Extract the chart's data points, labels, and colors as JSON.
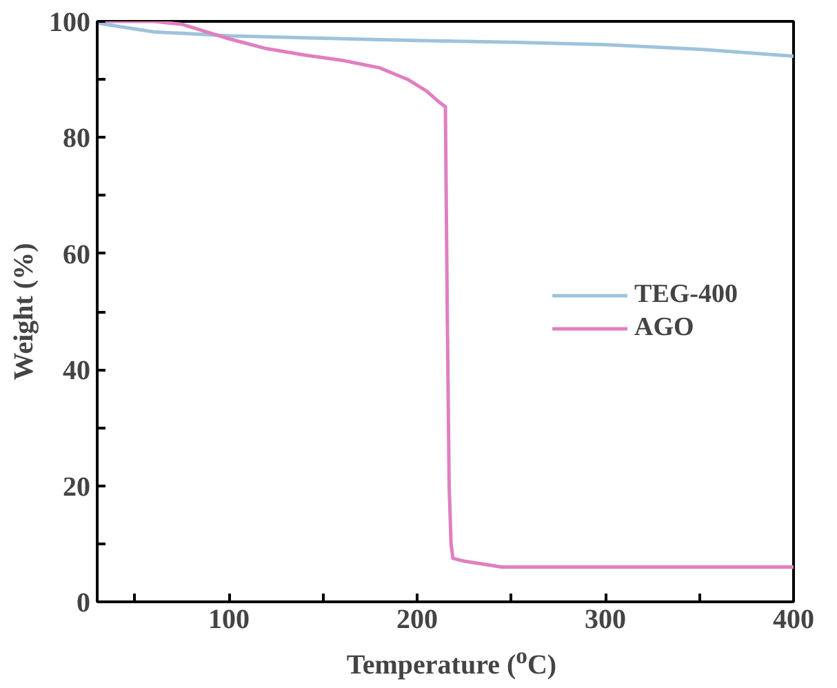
{
  "chart_data": {
    "type": "line",
    "xlabel": "Temperature ($^{o}$C)",
    "ylabel": "Weight (%)",
    "xlim": [
      30,
      400
    ],
    "ylim": [
      0,
      100
    ],
    "xticks": [
      {
        "value": 50,
        "label": null
      },
      100,
      {
        "value": 150,
        "label": null
      },
      200,
      {
        "value": 250,
        "label": null
      },
      300,
      {
        "value": 350,
        "label": null
      },
      400
    ],
    "yticks": [
      0,
      {
        "value": 10,
        "label": null
      },
      20,
      {
        "value": 30,
        "label": null
      },
      40,
      {
        "value": 50,
        "label": null
      },
      60,
      {
        "value": 70,
        "label": null
      },
      80,
      {
        "value": 90,
        "label": null
      },
      100
    ],
    "grid": false,
    "legend": "right",
    "marker": "none",
    "line_style": "solid",
    "series": [
      {
        "name": "TEG-400",
        "color": "#9ec3dc",
        "x": [
          30,
          60,
          100,
          150,
          200,
          250,
          300,
          350,
          400
        ],
        "values": [
          99.7,
          98.2,
          97.5,
          97.1,
          96.7,
          96.4,
          96.0,
          95.2,
          94.0
        ]
      },
      {
        "name": "AGO",
        "color": "#e07fbf",
        "x": [
          30,
          60,
          75,
          90,
          100,
          120,
          140,
          160,
          180,
          195,
          205,
          212,
          215,
          216,
          217,
          218,
          219,
          225,
          245,
          300,
          400
        ],
        "values": [
          100,
          100,
          99.5,
          98,
          97,
          95.3,
          94.2,
          93.3,
          92,
          90,
          88,
          86,
          85.3,
          50,
          20,
          10,
          7.5,
          7,
          6,
          6,
          6
        ]
      }
    ]
  }
}
